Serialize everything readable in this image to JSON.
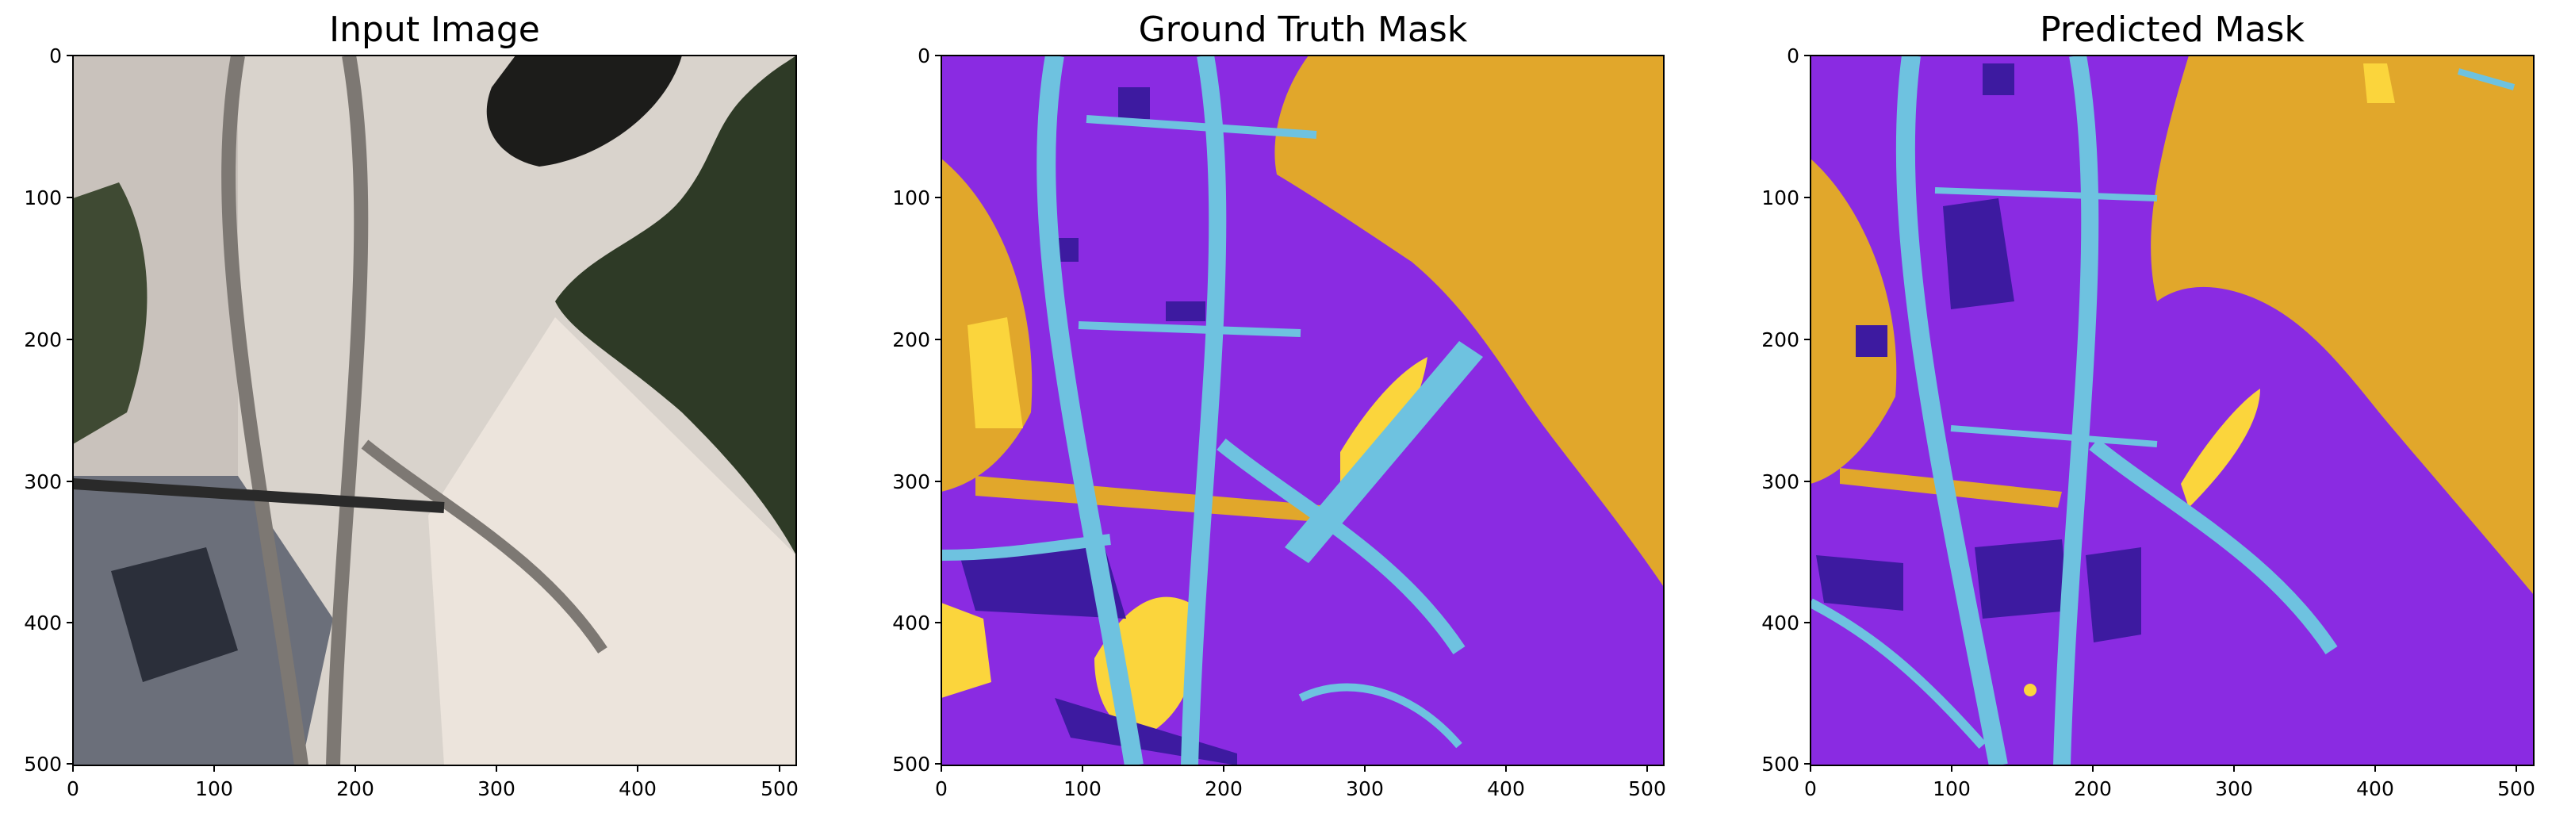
{
  "panels": [
    {
      "title": "Input Image",
      "type": "image"
    },
    {
      "title": "Ground Truth Mask",
      "type": "mask"
    },
    {
      "title": "Predicted Mask",
      "type": "mask"
    }
  ],
  "axes": {
    "x_ticks": [
      "0",
      "100",
      "200",
      "300",
      "400",
      "500"
    ],
    "y_ticks": [
      "0",
      "100",
      "200",
      "300",
      "400",
      "500"
    ],
    "xlim": [
      0,
      512
    ],
    "ylim": [
      512,
      0
    ]
  },
  "class_colors": {
    "background": "#8a2be2",
    "water": "#e1a72b",
    "road": "#6ec2e0",
    "building": "#3d1aa0",
    "vegetation": "#fbd53c",
    "land": "#e8ddd4"
  }
}
